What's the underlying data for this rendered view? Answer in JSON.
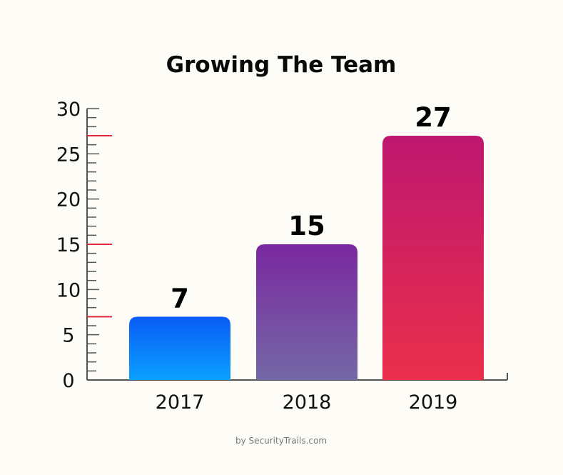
{
  "chart_data": {
    "type": "bar",
    "title": "Growing The Team",
    "categories": [
      "2017",
      "2018",
      "2019"
    ],
    "values": [
      7,
      15,
      27
    ],
    "data_labels": [
      "7",
      "15",
      "27"
    ],
    "ylim": [
      0,
      30
    ],
    "yticks": [
      "0",
      "5",
      "10",
      "15",
      "20",
      "25",
      "30"
    ],
    "highlight_ticks": [
      7,
      15,
      27
    ],
    "xlabel": "",
    "ylabel": "",
    "grid": false,
    "legend": "none",
    "bar_gradients": [
      {
        "top": "#0a5cf6",
        "bottom": "#0ba0ff"
      },
      {
        "top": "#7a28a0",
        "bottom": "#7468a6"
      },
      {
        "top": "#be176f",
        "bottom": "#ea2f4b"
      }
    ],
    "highlight_tick_color": "#e0283d",
    "axis_color": "#555555"
  },
  "credit": "by SecurityTrails.com"
}
